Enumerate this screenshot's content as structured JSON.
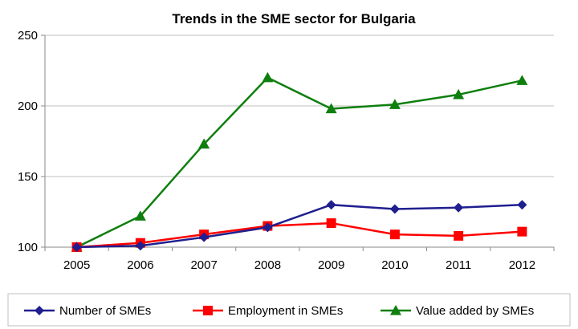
{
  "chart_data": {
    "type": "line",
    "title": "Trends in the SME sector for Bulgaria",
    "xlabel": "",
    "ylabel": "",
    "categories": [
      "2005",
      "2006",
      "2007",
      "2008",
      "2009",
      "2010",
      "2011",
      "2012"
    ],
    "ylim": [
      100,
      250
    ],
    "yticks": [
      "100",
      "150",
      "200",
      "250"
    ],
    "grid": "horizontal",
    "legend_position": "bottom",
    "series": [
      {
        "name": "Number of SMEs",
        "color": "#1f1f8f",
        "marker": "diamond",
        "values": [
          100,
          101,
          107,
          114,
          130,
          127,
          128,
          130
        ]
      },
      {
        "name": "Employment in SMEs",
        "color": "#ff0000",
        "marker": "square",
        "values": [
          100,
          103,
          109,
          115,
          117,
          109,
          108,
          111
        ]
      },
      {
        "name": "Value added by SMEs",
        "color": "#0e7f0e",
        "marker": "triangle",
        "values": [
          100,
          122,
          173,
          220,
          198,
          201,
          208,
          218
        ]
      }
    ]
  }
}
